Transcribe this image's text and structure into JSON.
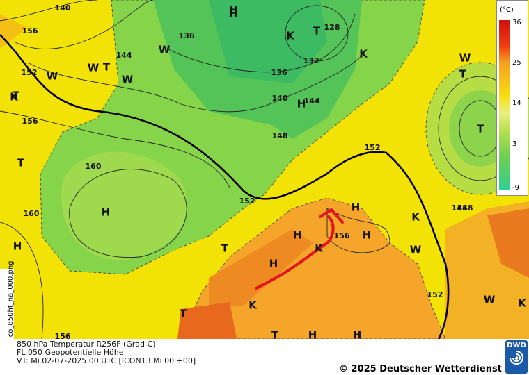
{
  "map": {
    "colorbar": {
      "unit": "(°C)",
      "ticks": [
        36,
        25,
        14,
        3,
        -9
      ]
    },
    "system_labels": [
      "H",
      "T",
      "K",
      "T",
      "W",
      "T",
      "W",
      "W",
      "K",
      "T",
      "H",
      "T",
      "H",
      "H",
      "H",
      "K",
      "H",
      "H",
      "W",
      "K",
      "T",
      "K",
      "T",
      "T",
      "H",
      "H",
      "W",
      "K",
      "T",
      "H",
      "W",
      "H",
      "K",
      "W"
    ],
    "contour_labels": [
      "140",
      "148",
      "152",
      "156",
      "136",
      "132",
      "128",
      "144",
      "136",
      "140",
      "144",
      "148",
      "160",
      "160",
      "152",
      "152",
      "156",
      "148",
      "152",
      "156",
      "156"
    ],
    "side_label": "ico_850ht_na_000.png",
    "footer": {
      "line1": "850 hPa Temperatur R256F (Grad C)",
      "line2": "FL 050 Geopotentielle Höhe",
      "line3": "VT: Mi 02-07-2025 00 UTC [ICON13 Mi 00 +00]",
      "copyright": "© 2025 Deutscher Wetterdienst",
      "logo": "DWD"
    }
  }
}
